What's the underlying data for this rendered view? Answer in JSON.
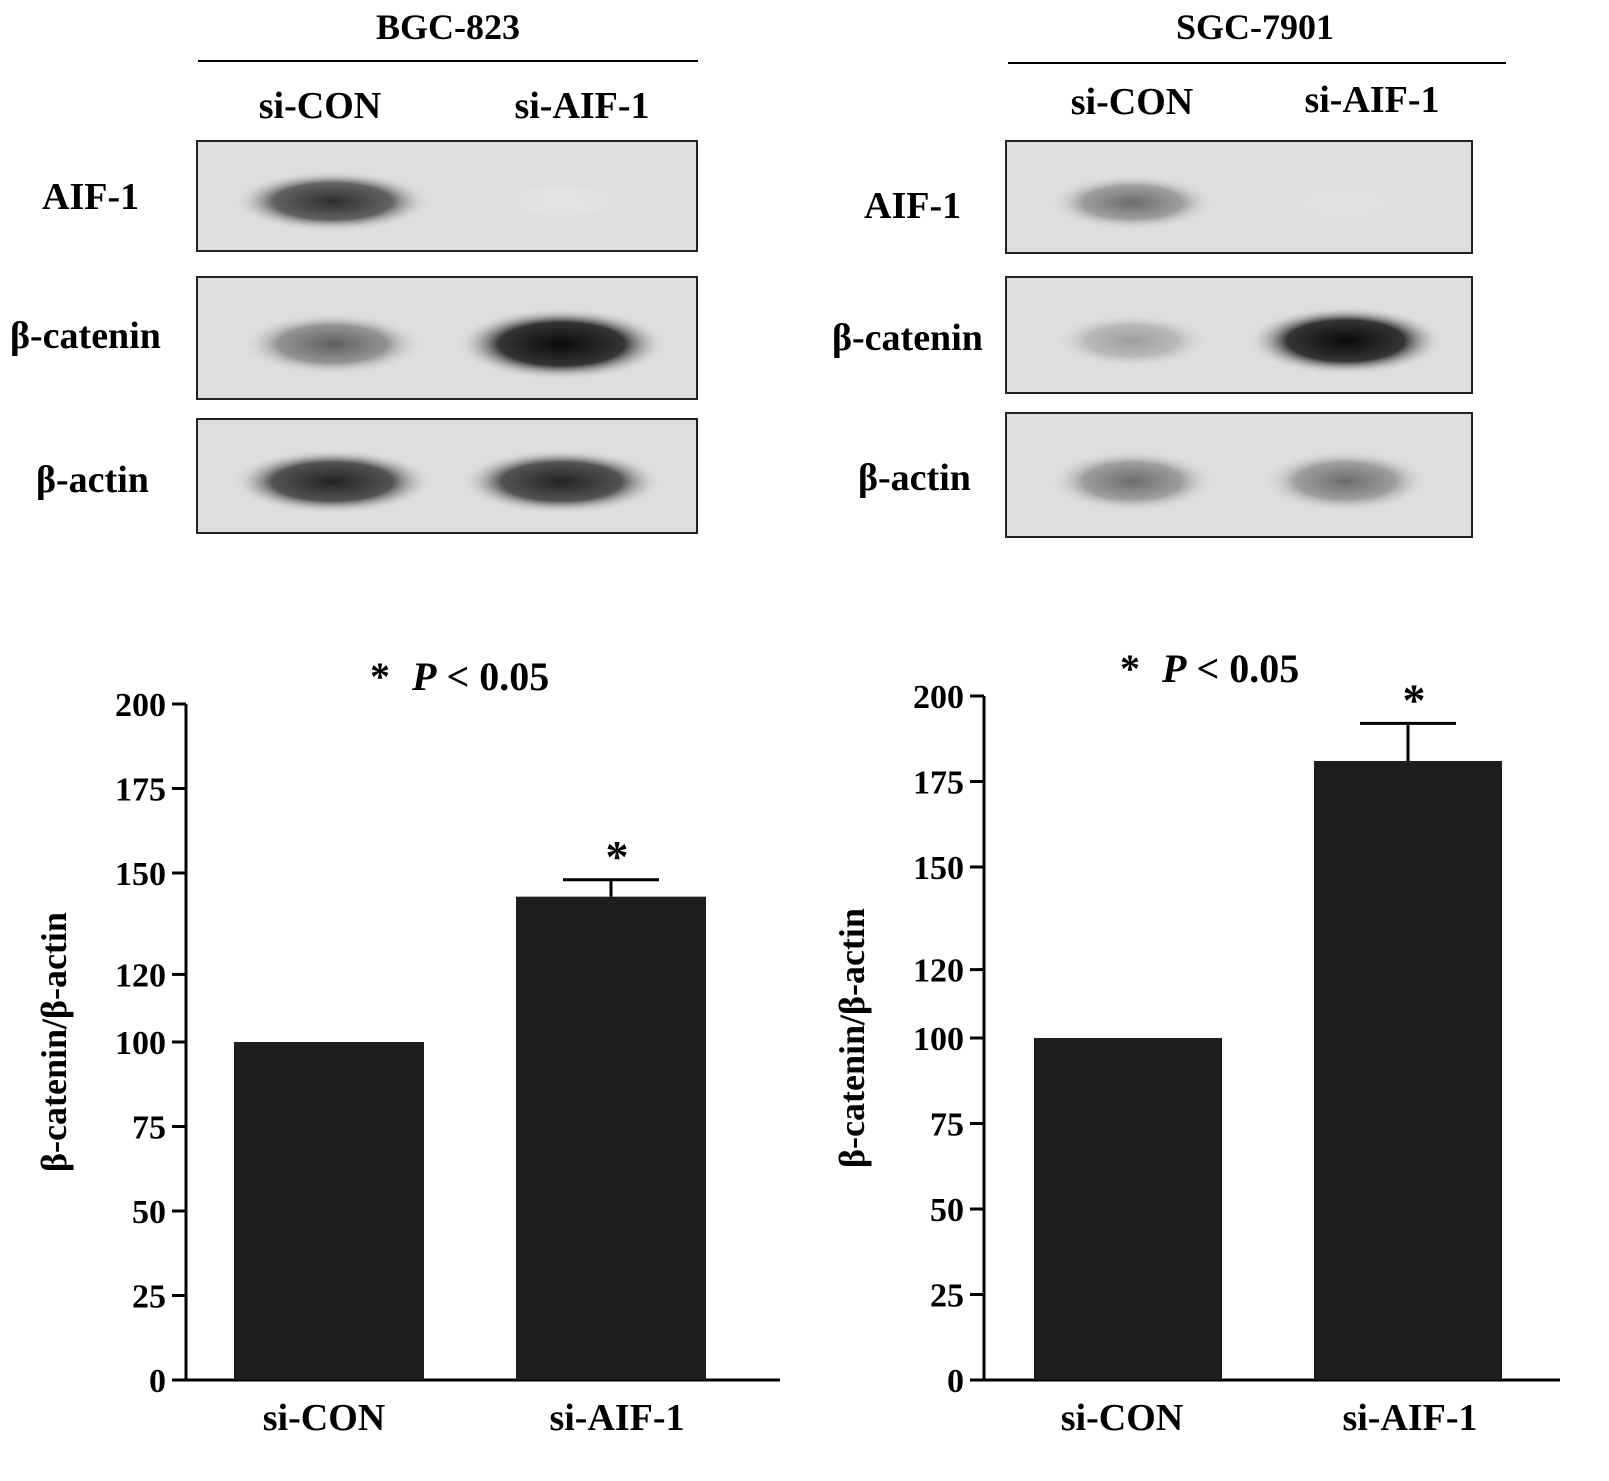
{
  "blots": [
    {
      "title": "BGC-823",
      "lanes": [
        "si-CON",
        "si-AIF-1"
      ],
      "rows": [
        {
          "label": "AIF-1",
          "intensity": [
            0.85,
            0.08
          ]
        },
        {
          "label": "β-catenin",
          "intensity": [
            0.65,
            1.0
          ]
        },
        {
          "label": "β-actin",
          "intensity": [
            0.9,
            0.9
          ]
        }
      ]
    },
    {
      "title": "SGC-7901",
      "lanes": [
        "si-CON",
        "si-AIF-1"
      ],
      "rows": [
        {
          "label": "AIF-1",
          "intensity": [
            0.6,
            0.1
          ]
        },
        {
          "label": "β-catenin",
          "intensity": [
            0.45,
            1.0
          ]
        },
        {
          "label": "β-actin",
          "intensity": [
            0.6,
            0.6
          ]
        }
      ]
    }
  ],
  "chart_data": [
    {
      "type": "bar",
      "annotation": "* P < 0.05",
      "categories": [
        "si-CON",
        "si-AIF-1"
      ],
      "values": [
        100,
        143
      ],
      "errors": [
        0,
        5
      ],
      "significance": [
        "",
        "*"
      ],
      "ylabel": "β-catenin/β-actin",
      "yticks": [
        0,
        25,
        50,
        75,
        100,
        120,
        150,
        175,
        200
      ],
      "ylim": [
        0,
        200
      ],
      "grid": false,
      "bar_color": "#1e1e1e"
    },
    {
      "type": "bar",
      "annotation": "* P < 0.05",
      "categories": [
        "si-CON",
        "si-AIF-1"
      ],
      "values": [
        100,
        181
      ],
      "errors": [
        0,
        11
      ],
      "significance": [
        "",
        "*"
      ],
      "ylabel": "β-catenin/β-actin",
      "yticks": [
        0,
        25,
        50,
        75,
        100,
        120,
        150,
        175,
        200
      ],
      "ylim": [
        0,
        200
      ],
      "grid": false,
      "bar_color": "#1e1e1e"
    }
  ]
}
